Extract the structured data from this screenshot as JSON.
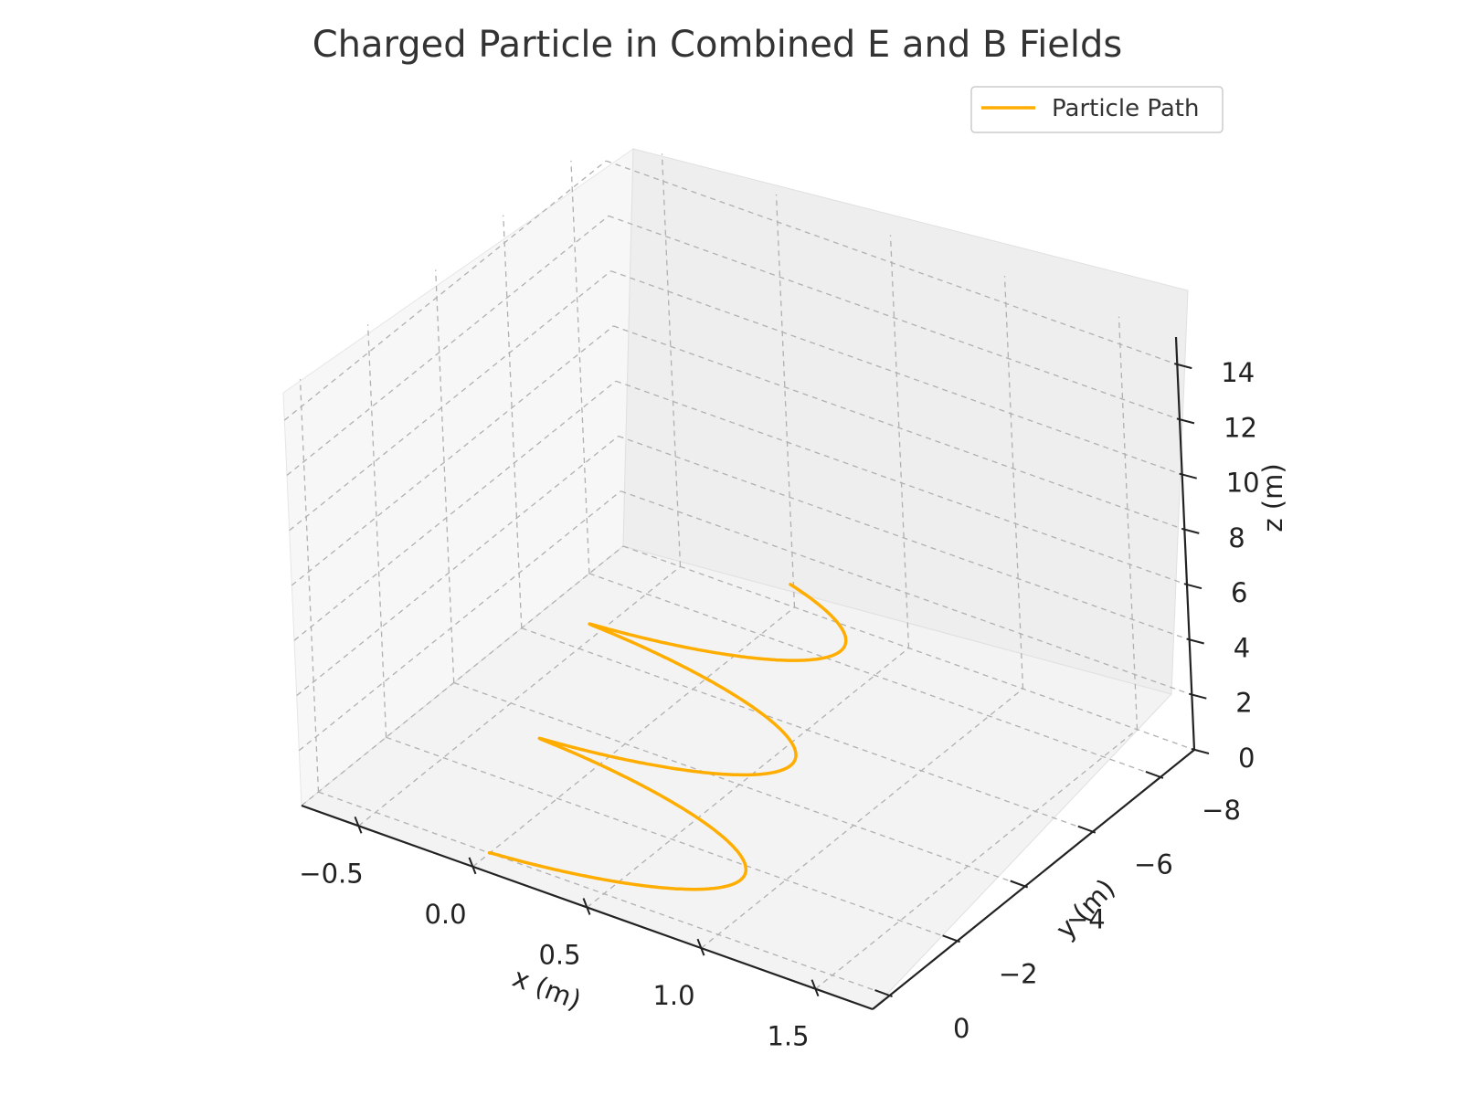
{
  "chart_data": {
    "type": "line",
    "projection": "3d",
    "title": "Charged Particle in Combined E and B Fields",
    "xlabel": "x (m)",
    "ylabel": "y (m)",
    "zlabel": "z (m)",
    "xlim": [
      -0.75,
      1.75
    ],
    "ylim": [
      -9,
      0.5
    ],
    "zlim": [
      0,
      15
    ],
    "xticks": [
      -0.5,
      0.0,
      0.5,
      1.0,
      1.5
    ],
    "xtick_labels": [
      "−0.5",
      "0.0",
      "0.5",
      "1.0",
      "1.5"
    ],
    "yticks": [
      0,
      -2,
      -4,
      -6,
      -8
    ],
    "ytick_labels": [
      "0",
      "−2",
      "−4",
      "−6",
      "−8"
    ],
    "zticks": [
      0,
      2,
      4,
      6,
      8,
      10,
      12,
      14
    ],
    "ztick_labels": [
      "0",
      "2",
      "4",
      "6",
      "8",
      "10",
      "12",
      "14"
    ],
    "grid": true,
    "grid_style": "dashed",
    "legend_position": "top-right",
    "series": [
      {
        "name": "Particle Path",
        "color": "#ffad00",
        "model": "helix",
        "x_center": 0.5,
        "x_amplitude": 0.5,
        "y_drift_per_turn": -1.57,
        "y_amplitude": 0.5,
        "z_drift_per_turn": 2.6,
        "turns": 2.7,
        "start": [
          0,
          0,
          0
        ]
      }
    ]
  }
}
